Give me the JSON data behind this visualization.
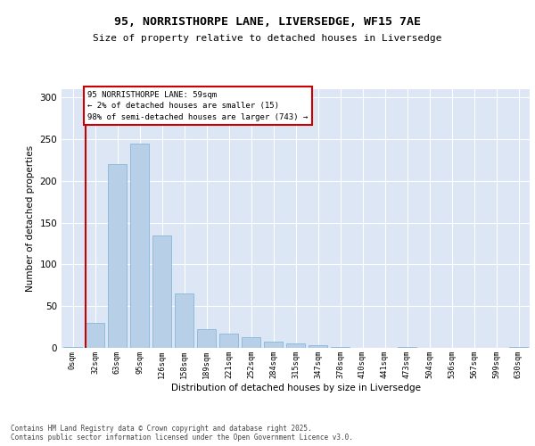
{
  "title_line1": "95, NORRISTHORPE LANE, LIVERSEDGE, WF15 7AE",
  "title_line2": "Size of property relative to detached houses in Liversedge",
  "xlabel": "Distribution of detached houses by size in Liversedge",
  "ylabel": "Number of detached properties",
  "bar_color": "#b8cfe8",
  "bar_edge_color": "#7aafd4",
  "background_color": "#dce6f5",
  "grid_color": "#ffffff",
  "categories": [
    "0sqm",
    "32sqm",
    "63sqm",
    "95sqm",
    "126sqm",
    "158sqm",
    "189sqm",
    "221sqm",
    "252sqm",
    "284sqm",
    "315sqm",
    "347sqm",
    "378sqm",
    "410sqm",
    "441sqm",
    "473sqm",
    "504sqm",
    "536sqm",
    "567sqm",
    "599sqm",
    "630sqm"
  ],
  "values": [
    1,
    30,
    220,
    245,
    135,
    65,
    22,
    17,
    13,
    8,
    5,
    3,
    1,
    0,
    0,
    1,
    0,
    0,
    0,
    0,
    1
  ],
  "ylim": [
    0,
    310
  ],
  "yticks": [
    0,
    50,
    100,
    150,
    200,
    250,
    300
  ],
  "property_bin_index": 1,
  "annotation_line1": "95 NORRISTHORPE LANE: 59sqm",
  "annotation_line2": "← 2% of detached houses are smaller (15)",
  "annotation_line3": "98% of semi-detached houses are larger (743) →",
  "annotation_box_color": "#ffffff",
  "annotation_border_color": "#cc0000",
  "vline_color": "#cc0000",
  "footer_line1": "Contains HM Land Registry data © Crown copyright and database right 2025.",
  "footer_line2": "Contains public sector information licensed under the Open Government Licence v3.0."
}
